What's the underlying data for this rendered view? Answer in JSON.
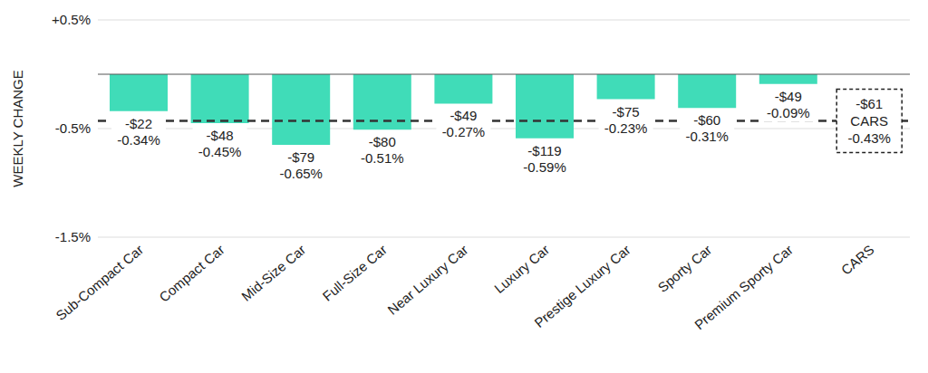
{
  "chart_data": {
    "type": "bar",
    "y_label": "WEEKLY CHANGE",
    "categories": [
      "Sub-Compact Car",
      "Compact Car",
      "Mid-Size Car",
      "Full-Size Car",
      "Near Luxury Car",
      "Luxury Car",
      "Prestige Luxury Car",
      "Sporty Car",
      "Premium Sporty Car",
      "CARS"
    ],
    "values": [
      -0.34,
      -0.45,
      -0.65,
      -0.51,
      -0.27,
      -0.59,
      -0.23,
      -0.31,
      -0.09,
      null
    ],
    "value_labels": [
      "-0.34%",
      "-0.45%",
      "-0.65%",
      "-0.51%",
      "-0.27%",
      "-0.59%",
      "-0.23%",
      "-0.31%",
      "-0.09%",
      null
    ],
    "dollar_values": [
      -22,
      -48,
      -79,
      -80,
      -49,
      -119,
      -75,
      -60,
      -49,
      null
    ],
    "dollar_labels": [
      "-$22",
      "-$48",
      "-$79",
      "-$80",
      "-$49",
      "-$119",
      "-$75",
      "-$60",
      "-$49",
      null
    ],
    "average": {
      "label": "CARS",
      "value": -0.43,
      "value_label": "-0.43%",
      "dollar_value": -61,
      "dollar_label": "-$61",
      "line_style": "dashed"
    },
    "color": "#40dcb8",
    "ylim": [
      -1.5,
      0.5
    ],
    "yticks": [
      {
        "value": 0.5,
        "label": "+0.5%"
      },
      {
        "value": -0.5,
        "label": "-0.5%"
      },
      {
        "value": -1.5,
        "label": "-1.5%"
      }
    ],
    "grid": true,
    "data_labels": true
  }
}
